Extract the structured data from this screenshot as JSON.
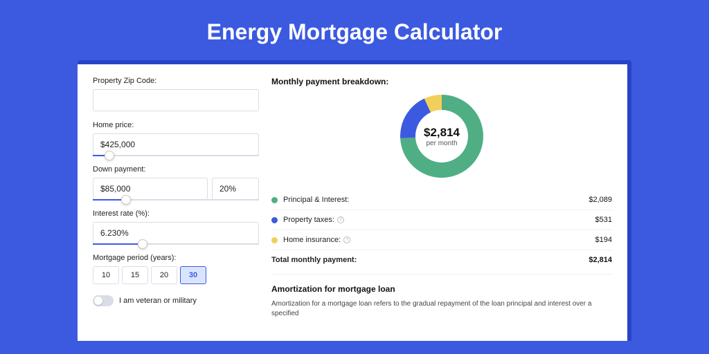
{
  "page": {
    "title": "Energy Mortgage Calculator",
    "bg_color": "#3b5ae0",
    "shadow_color": "#2743c7",
    "card_bg": "#ffffff"
  },
  "form": {
    "zip": {
      "label": "Property Zip Code:",
      "value": ""
    },
    "price": {
      "label": "Home price:",
      "value": "$425,000",
      "slider_pct": 10
    },
    "down": {
      "label": "Down payment:",
      "amount": "$85,000",
      "percent": "20%",
      "slider_pct": 20
    },
    "rate": {
      "label": "Interest rate (%):",
      "value": "6.230%",
      "slider_pct": 30
    },
    "period": {
      "label": "Mortgage period (years):",
      "options": [
        "10",
        "15",
        "20",
        "30"
      ],
      "selected": "30"
    },
    "veteran": {
      "label": "I am veteran or military",
      "on": false
    }
  },
  "breakdown": {
    "heading": "Monthly payment breakdown:",
    "center_value": "$2,814",
    "center_sub": "per month",
    "donut": {
      "size": 120,
      "inner_radius": 38,
      "outer_radius": 60,
      "bg": "#ffffff",
      "segments": [
        {
          "key": "principal",
          "value": 2089,
          "color": "#4fae84",
          "start_deg": 0
        },
        {
          "key": "taxes",
          "value": 531,
          "color": "#3b5ae0"
        },
        {
          "key": "insurance",
          "value": 194,
          "color": "#f2cf5b"
        }
      ]
    },
    "rows": [
      {
        "dot": "#4fae84",
        "label": "Principal & Interest:",
        "info": false,
        "value": "$2,089"
      },
      {
        "dot": "#3b5ae0",
        "label": "Property taxes:",
        "info": true,
        "value": "$531"
      },
      {
        "dot": "#f2cf5b",
        "label": "Home insurance:",
        "info": true,
        "value": "$194"
      }
    ],
    "total": {
      "label": "Total monthly payment:",
      "value": "$2,814"
    }
  },
  "amort": {
    "title": "Amortization for mortgage loan",
    "text": "Amortization for a mortgage loan refers to the gradual repayment of the loan principal and interest over a specified"
  }
}
